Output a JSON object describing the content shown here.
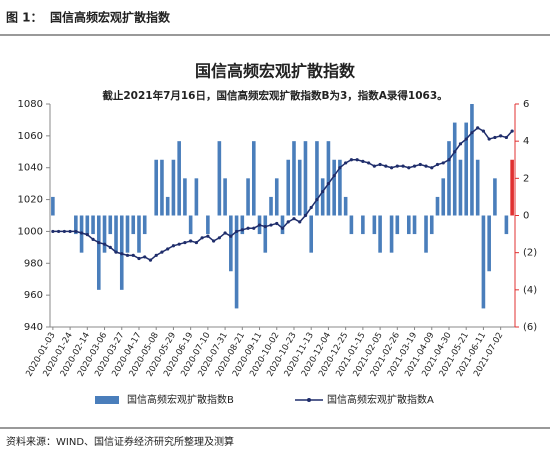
{
  "figure_label": "图 1：",
  "figure_title": "国信高频宏观扩散指数",
  "source": "资料来源：WIND、国信证券经济研究所整理及测算",
  "chart_data": {
    "type": "bar_line",
    "title": "国信高频宏观扩散指数",
    "subtitle": "截止2021年7月16日，国信高频宏观扩散指数B为3，指数A录得1063。",
    "categories": [
      "2020-01-03",
      null,
      null,
      "2020-01-24",
      null,
      null,
      "2020-02-14",
      null,
      null,
      "2020-03-06",
      null,
      null,
      "2020-03-27",
      null,
      null,
      "2020-04-17",
      null,
      null,
      "2020-05-08",
      null,
      null,
      "2020-05-29",
      null,
      null,
      "2020-06-19",
      null,
      null,
      "2020-07-10",
      null,
      null,
      "2020-07-31",
      null,
      null,
      "2020-08-21",
      null,
      null,
      "2020-09-11",
      null,
      null,
      "2020-10-02",
      null,
      null,
      "2020-10-23",
      null,
      null,
      "2020-11-13",
      null,
      null,
      "2020-12-04",
      null,
      null,
      "2020-12-25",
      null,
      null,
      "2021-01-15",
      null,
      null,
      "2021-02-05",
      null,
      null,
      "2021-02-26",
      null,
      null,
      "2021-03-19",
      null,
      null,
      "2021-04-09",
      null,
      null,
      "2021-04-30",
      null,
      null,
      "2021-05-21",
      null,
      null,
      "2021-06-11",
      null,
      null,
      "2021-07-02",
      null,
      null
    ],
    "series": [
      {
        "name": "国信高频宏观扩散指数B",
        "type": "bar",
        "axis": "y2",
        "color": "#4a7ebb",
        "highlight_last_color": "#e03030",
        "values": [
          1,
          0,
          0,
          0,
          -1,
          -2,
          -1,
          -1,
          -4,
          -2,
          -1,
          -2,
          -4,
          -2,
          -1,
          -2,
          -1,
          0,
          3,
          3,
          1,
          3,
          4,
          2,
          -1,
          2,
          0,
          -1,
          0,
          4,
          2,
          -3,
          -5,
          -1,
          2,
          4,
          -1,
          -2,
          1,
          2,
          -1,
          3,
          4,
          3,
          4,
          -2,
          4,
          2,
          4,
          3,
          3,
          1,
          -1,
          0,
          -1,
          0,
          -1,
          -2,
          0,
          -2,
          -1,
          0,
          -1,
          -1,
          0,
          -2,
          -1,
          1,
          2,
          4,
          5,
          3,
          5,
          6,
          3,
          -5,
          -3,
          2,
          0,
          -1,
          3
        ]
      },
      {
        "name": "国信高频宏观扩散指数A",
        "type": "line",
        "axis": "y",
        "color": "#1f2d6b",
        "values": [
          1000,
          1000,
          1000,
          1000,
          1000,
          999,
          998,
          995,
          993,
          992,
          990,
          987,
          986,
          985,
          985,
          983,
          984,
          982,
          985,
          987,
          989,
          991,
          992,
          993,
          994,
          993,
          996,
          997,
          994,
          996,
          999,
          997,
          1000,
          1001,
          1002,
          1002,
          1004,
          1003,
          1004,
          1005,
          1002,
          1006,
          1008,
          1006,
          1010,
          1015,
          1020,
          1025,
          1030,
          1035,
          1040,
          1043,
          1045,
          1045,
          1044,
          1043,
          1041,
          1042,
          1041,
          1040,
          1041,
          1041,
          1040,
          1041,
          1042,
          1041,
          1040,
          1042,
          1043,
          1045,
          1050,
          1055,
          1058,
          1062,
          1065,
          1063,
          1058,
          1059,
          1060,
          1059,
          1063
        ]
      }
    ],
    "ylim": [
      940,
      1080
    ],
    "yticks": [
      940,
      960,
      980,
      1000,
      1020,
      1040,
      1060,
      1080
    ],
    "y2lim": [
      -6,
      6
    ],
    "y2ticks": [
      {
        "value": -6,
        "label": "(6)"
      },
      {
        "value": -4,
        "label": "(4)"
      },
      {
        "value": -2,
        "label": "(2)"
      },
      0,
      2,
      4,
      6
    ],
    "legend": "bottom"
  }
}
